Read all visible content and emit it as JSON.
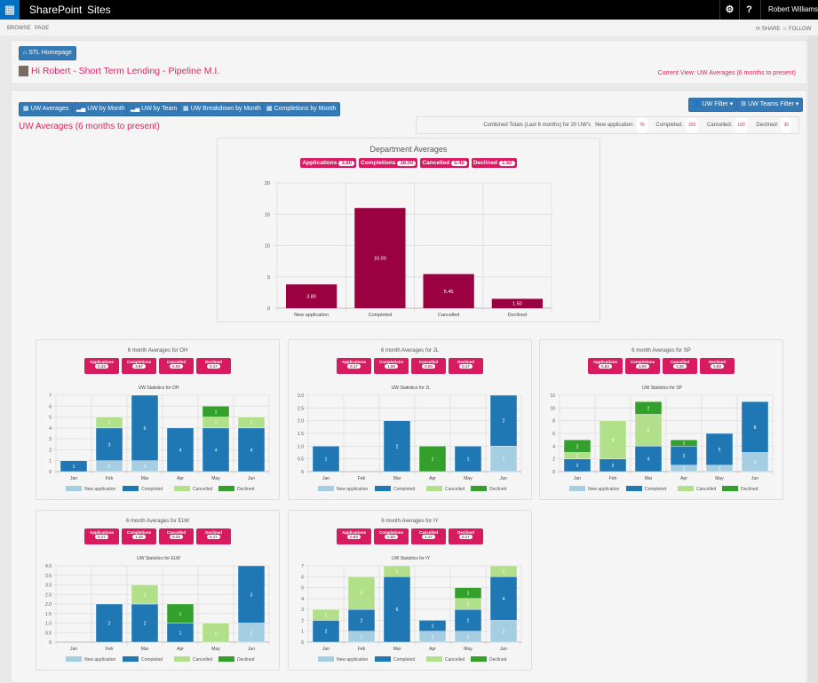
{
  "topbar": {
    "brand": "SharePoint",
    "sites": "Sites",
    "user": "Robert Williams",
    "icons": [
      "app-launcher-icon",
      "gear-icon",
      "help-icon"
    ]
  },
  "ribbon": {
    "browse": "BROWSE",
    "page": "PAGE",
    "share": "SHARE",
    "follow": "FOLLOW"
  },
  "header": {
    "home_button": "STL Homepage",
    "greeting": "Hi Robert - Short Term Lending - Pipeline M.I.",
    "current_view": "Current View: UW Averages (6 months to present)"
  },
  "nav": {
    "tabs": [
      "UW Averages",
      "UW by Month",
      "UW by Team",
      "UW Breakdown by Month",
      "Completions by Month"
    ],
    "uw_filter": "UW Filter",
    "teams_filter": "UW Teams Filter"
  },
  "section_title": "UW Averages (6 months to present)",
  "totals": {
    "label": "Combined Totals (Last 6 months) for 20 UW's",
    "items": [
      {
        "label": "New application:",
        "value": "76"
      },
      {
        "label": "Completed:",
        "value": "320"
      },
      {
        "label": "Cancelled:",
        "value": "109"
      },
      {
        "label": "Declined:",
        "value": "30"
      }
    ]
  },
  "colors": {
    "accent": "#e0245e",
    "badge": "#d81b60",
    "button": "#337ab7",
    "dept_bar": "#9b0040",
    "new": "#a6cee3",
    "completed": "#1f78b4",
    "cancelled": "#b2df8a",
    "declined": "#33a02c"
  },
  "chart_data": [
    {
      "type": "bar",
      "title": "Department Averages",
      "badges": [
        {
          "label": "Applications",
          "value": "3.80"
        },
        {
          "label": "Completions",
          "value": "16.00"
        },
        {
          "label": "Cancelled",
          "value": "5.45"
        },
        {
          "label": "Declined",
          "value": "1.50"
        }
      ],
      "categories": [
        "New application",
        "Completed",
        "Cancelled",
        "Declined"
      ],
      "values": [
        3.8,
        16.0,
        5.45,
        1.5
      ],
      "value_labels": [
        "3.80",
        "16.00",
        "5.45",
        "1.50"
      ],
      "ylim": [
        0,
        20
      ],
      "yticks": [
        0,
        5,
        10,
        15,
        20
      ],
      "grid": true
    },
    {
      "type": "stacked-bar",
      "title": "6 month Averages for OH",
      "subtitle": "UW Statistics for OH",
      "badges": [
        {
          "label": "Applications",
          "value": "0.33"
        },
        {
          "label": "Completions",
          "value": "3.67"
        },
        {
          "label": "Cancelled",
          "value": "0.50"
        },
        {
          "label": "Declined",
          "value": "0.17"
        }
      ],
      "categories": [
        "Jan",
        "Feb",
        "Mar",
        "Apr",
        "May",
        "Jun"
      ],
      "ylim": [
        0,
        7
      ],
      "yticks": [
        "0",
        "1",
        "2",
        "3",
        "4",
        "5",
        "6",
        "7"
      ],
      "series": [
        {
          "name": "New application",
          "values": [
            0,
            1,
            1,
            0,
            0,
            0
          ]
        },
        {
          "name": "Completed",
          "values": [
            1,
            3,
            6,
            4,
            4,
            4
          ]
        },
        {
          "name": "Cancelled",
          "values": [
            0,
            1,
            0,
            0,
            1,
            1
          ]
        },
        {
          "name": "Declined",
          "values": [
            0,
            0,
            0,
            0,
            1,
            0
          ]
        }
      ],
      "legend": "bottom"
    },
    {
      "type": "stacked-bar",
      "title": "6 month Averages for JL",
      "subtitle": "UW Statistics for JL",
      "badges": [
        {
          "label": "Applications",
          "value": "0.17"
        },
        {
          "label": "Completions",
          "value": "1.00"
        },
        {
          "label": "Cancelled",
          "value": "0.00"
        },
        {
          "label": "Declined",
          "value": "0.17"
        }
      ],
      "categories": [
        "Jan",
        "Feb",
        "Mar",
        "Apr",
        "May",
        "Jun"
      ],
      "ylim": [
        0,
        3
      ],
      "yticks": [
        "0",
        "0.5",
        "1.0",
        "1.5",
        "2.0",
        "2.5",
        "3.0"
      ],
      "series": [
        {
          "name": "New application",
          "values": [
            0,
            0,
            0,
            0,
            0,
            1
          ]
        },
        {
          "name": "Completed",
          "values": [
            1,
            0,
            2,
            0,
            1,
            2
          ]
        },
        {
          "name": "Cancelled",
          "values": [
            0,
            0,
            0,
            0,
            0,
            0
          ]
        },
        {
          "name": "Declined",
          "values": [
            0,
            0,
            0,
            1,
            0,
            0
          ]
        }
      ],
      "legend": "bottom"
    },
    {
      "type": "stacked-bar",
      "title": "6 month Averages for SP",
      "subtitle": "UW Statistics for SP",
      "badges": [
        {
          "label": "Applications",
          "value": "0.83"
        },
        {
          "label": "Completions",
          "value": "4.00"
        },
        {
          "label": "Cancelled",
          "value": "2.00"
        },
        {
          "label": "Declined",
          "value": "0.83"
        }
      ],
      "categories": [
        "Jan",
        "Feb",
        "Mar",
        "Apr",
        "May",
        "Jun"
      ],
      "ylim": [
        0,
        12
      ],
      "yticks": [
        "0",
        "2",
        "4",
        "6",
        "8",
        "10",
        "12"
      ],
      "series": [
        {
          "name": "New application",
          "values": [
            0,
            0,
            0,
            1,
            1,
            3
          ]
        },
        {
          "name": "Completed",
          "values": [
            2,
            2,
            4,
            3,
            5,
            8
          ]
        },
        {
          "name": "Cancelled",
          "values": [
            1,
            6,
            5,
            0,
            0,
            0
          ]
        },
        {
          "name": "Declined",
          "values": [
            2,
            0,
            2,
            1,
            0,
            0
          ]
        }
      ],
      "legend": "bottom"
    },
    {
      "type": "stacked-bar",
      "title": "6 month Averages for ELW",
      "subtitle": "UW Statistics for ELW",
      "badges": [
        {
          "label": "Applications",
          "value": "0.17"
        },
        {
          "label": "Completions",
          "value": "1.33"
        },
        {
          "label": "Cancelled",
          "value": "0.33"
        },
        {
          "label": "Declined",
          "value": "0.17"
        }
      ],
      "categories": [
        "Jan",
        "Feb",
        "Mar",
        "Apr",
        "May",
        "Jun"
      ],
      "ylim": [
        0,
        4
      ],
      "yticks": [
        "0",
        "0.5",
        "1.0",
        "1.5",
        "2.0",
        "2.5",
        "3.0",
        "3.5",
        "4.0"
      ],
      "series": [
        {
          "name": "New application",
          "values": [
            0,
            0,
            0,
            0,
            0,
            1
          ]
        },
        {
          "name": "Completed",
          "values": [
            0,
            2,
            2,
            1,
            0,
            3
          ]
        },
        {
          "name": "Cancelled",
          "values": [
            0,
            0,
            1,
            0,
            1,
            0
          ]
        },
        {
          "name": "Declined",
          "values": [
            0,
            0,
            0,
            1,
            0,
            0
          ]
        }
      ],
      "legend": "bottom"
    },
    {
      "type": "stacked-bar",
      "title": "6 month Averages for IY",
      "subtitle": "UW Statistics for IY",
      "badges": [
        {
          "label": "Applications",
          "value": "0.83"
        },
        {
          "label": "Completions",
          "value": "2.83"
        },
        {
          "label": "Cancelled",
          "value": "1.17"
        },
        {
          "label": "Declined",
          "value": "0.17"
        }
      ],
      "categories": [
        "Jan",
        "Feb",
        "Mar",
        "Apr",
        "May",
        "Jun"
      ],
      "ylim": [
        0,
        7
      ],
      "yticks": [
        "0",
        "1",
        "2",
        "3",
        "4",
        "5",
        "6",
        "7"
      ],
      "series": [
        {
          "name": "New application",
          "values": [
            0,
            1,
            0,
            1,
            1,
            2
          ]
        },
        {
          "name": "Completed",
          "values": [
            2,
            2,
            6,
            1,
            2,
            4
          ]
        },
        {
          "name": "Cancelled",
          "values": [
            1,
            3,
            1,
            0,
            1,
            1
          ]
        },
        {
          "name": "Declined",
          "values": [
            0,
            0,
            0,
            0,
            1,
            0
          ]
        }
      ],
      "legend": "bottom"
    }
  ]
}
